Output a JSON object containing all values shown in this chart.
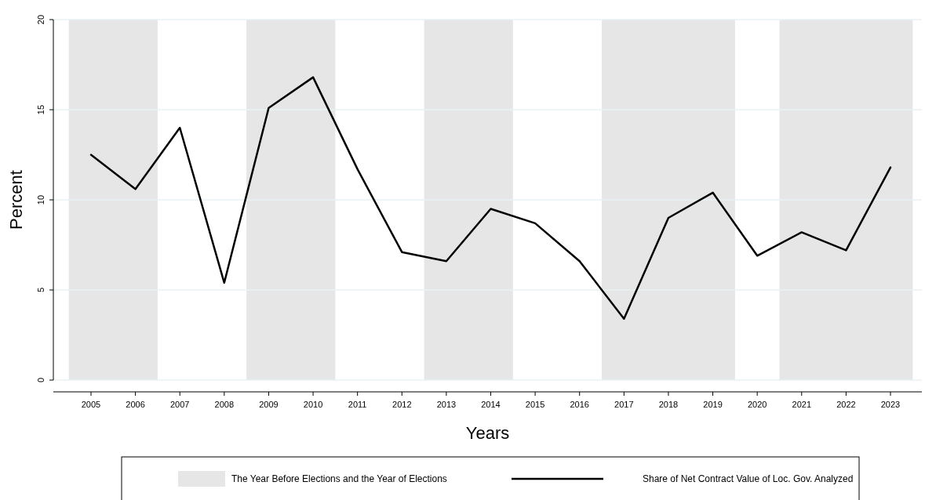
{
  "chart_data": {
    "type": "line",
    "xlabel": "Years",
    "ylabel": "Percent",
    "categories": [
      "2005",
      "2006",
      "2007",
      "2008",
      "2009",
      "2010",
      "2011",
      "2012",
      "2013",
      "2014",
      "2015",
      "2016",
      "2017",
      "2018",
      "2019",
      "2020",
      "2021",
      "2022",
      "2023"
    ],
    "series": [
      {
        "name": "Share of Net Contract Value of Loc. Gov. Analyzed",
        "color": "#000000",
        "values": [
          12.5,
          10.6,
          14.0,
          5.4,
          15.1,
          16.8,
          11.7,
          7.1,
          6.6,
          9.5,
          8.7,
          6.6,
          3.4,
          9.0,
          10.4,
          6.9,
          8.2,
          7.2,
          11.8
        ]
      }
    ],
    "ylim": [
      0,
      20
    ],
    "yticks": [
      0,
      5,
      10,
      15,
      20
    ],
    "grid": "y",
    "legend": "bottom",
    "line_style": "solid",
    "marker": "none",
    "bands": [
      {
        "axis": "x",
        "from": "2005",
        "to": "2006",
        "color": "#e6e6e6",
        "label": "The Year Before Elections and the Year of Elections"
      },
      {
        "axis": "x",
        "from": "2009",
        "to": "2010",
        "color": "#e6e6e6"
      },
      {
        "axis": "x",
        "from": "2013",
        "to": "2014",
        "color": "#e6e6e6"
      },
      {
        "axis": "x",
        "from": "2017",
        "to": "2019",
        "color": "#e6e6e6"
      },
      {
        "axis": "x",
        "from": "2021",
        "to": "2023",
        "color": "#e6e6e6"
      }
    ]
  }
}
